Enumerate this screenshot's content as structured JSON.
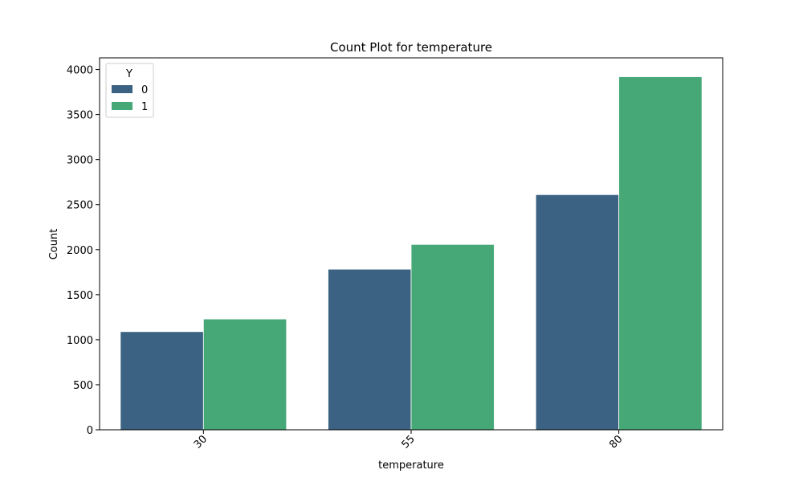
{
  "chart_data": {
    "type": "bar",
    "title": "Count Plot for temperature",
    "xlabel": "temperature",
    "ylabel": "Count",
    "categories": [
      "30",
      "55",
      "80"
    ],
    "series": [
      {
        "name": "0",
        "values": [
          1090,
          1783,
          2611
        ],
        "color": "#3b6282"
      },
      {
        "name": "1",
        "values": [
          1230,
          2058,
          3920
        ],
        "color": "#45a876"
      }
    ],
    "ylim": [
      0,
      4130
    ],
    "yticks": [
      0,
      500,
      1000,
      1500,
      2000,
      2500,
      3000,
      3500,
      4000
    ],
    "grid": false,
    "legend": {
      "title": "Y",
      "placement": "top-left"
    }
  }
}
